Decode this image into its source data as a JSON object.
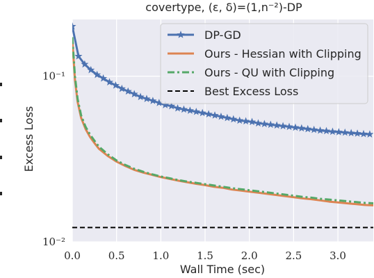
{
  "chart_data": {
    "type": "line",
    "title": "covertype, (ε, δ)=(1,n⁻²)-DP",
    "xlabel": "Wall Time (sec)",
    "ylabel": "Excess Loss",
    "x_scale": "linear",
    "y_scale": "log",
    "xlim": [
      0.0,
      3.4
    ],
    "ylim": [
      0.01,
      0.22
    ],
    "x_ticks": [
      0.0,
      0.5,
      1.0,
      1.5,
      2.0,
      2.5,
      3.0
    ],
    "x_tick_labels": [
      "0.0",
      "0.5",
      "1.0",
      "1.5",
      "2.0",
      "2.5",
      "3.0"
    ],
    "y_ticks": [
      0.1,
      0.01
    ],
    "y_tick_labels": [
      "10⁻¹",
      "10⁻²"
    ],
    "grid": true,
    "legend_position": "top-right",
    "series": [
      {
        "name": "DP-GD",
        "color": "#4c72b0",
        "style": "solid",
        "marker": "star",
        "x": [
          0.0,
          0.07,
          0.14,
          0.21,
          0.28,
          0.35,
          0.42,
          0.49,
          0.56,
          0.63,
          0.7,
          0.77,
          0.84,
          0.91,
          0.98,
          1.05,
          1.12,
          1.19,
          1.26,
          1.33,
          1.4,
          1.47,
          1.54,
          1.61,
          1.68,
          1.75,
          1.82,
          1.89,
          1.96,
          2.03,
          2.1,
          2.17,
          2.24,
          2.31,
          2.38,
          2.45,
          2.52,
          2.59,
          2.66,
          2.73,
          2.8,
          2.87,
          2.94,
          3.01,
          3.08,
          3.15,
          3.22,
          3.29,
          3.36
        ],
        "y": [
          0.2,
          0.132,
          0.118,
          0.109,
          0.102,
          0.097,
          0.092,
          0.088,
          0.084,
          0.081,
          0.078,
          0.075,
          0.073,
          0.071,
          0.069,
          0.067,
          0.066,
          0.064,
          0.063,
          0.062,
          0.061,
          0.06,
          0.059,
          0.058,
          0.057,
          0.056,
          0.055,
          0.054,
          0.0535,
          0.053,
          0.052,
          0.0515,
          0.051,
          0.0505,
          0.05,
          0.0495,
          0.049,
          0.0485,
          0.048,
          0.0475,
          0.047,
          0.0467,
          0.0463,
          0.046,
          0.0457,
          0.0454,
          0.0451,
          0.0448,
          0.0446
        ]
      },
      {
        "name": "Ours - Hessian with Clipping",
        "color": "#dd8452",
        "style": "solid",
        "marker": "none",
        "x": [
          0.0,
          0.03,
          0.06,
          0.1,
          0.15,
          0.2,
          0.25,
          0.3,
          0.4,
          0.5,
          0.6,
          0.7,
          0.8,
          0.9,
          1.0,
          1.1,
          1.2,
          1.3,
          1.4,
          1.5,
          1.6,
          1.7,
          1.8,
          1.9,
          2.0,
          2.1,
          2.2,
          2.3,
          2.4,
          2.5,
          2.6,
          2.7,
          2.8,
          2.9,
          3.0,
          3.1,
          3.2,
          3.3,
          3.4
        ],
        "y": [
          0.165,
          0.095,
          0.07,
          0.056,
          0.048,
          0.043,
          0.0395,
          0.0365,
          0.033,
          0.0305,
          0.0287,
          0.0272,
          0.0262,
          0.0254,
          0.0246,
          0.024,
          0.0234,
          0.0229,
          0.0224,
          0.022,
          0.0215,
          0.0212,
          0.0207,
          0.0204,
          0.0201,
          0.0198,
          0.0195,
          0.0192,
          0.0189,
          0.0186,
          0.0183,
          0.0181,
          0.0178,
          0.0175,
          0.0173,
          0.0171,
          0.0169,
          0.0167,
          0.0166
        ]
      },
      {
        "name": "Ours - QU with Clipping",
        "color": "#55a868",
        "style": "dashdot",
        "marker": "none",
        "x": [
          0.0,
          0.03,
          0.06,
          0.1,
          0.15,
          0.2,
          0.25,
          0.3,
          0.4,
          0.5,
          0.6,
          0.7,
          0.8,
          0.9,
          1.0,
          1.1,
          1.2,
          1.3,
          1.4,
          1.5,
          1.6,
          1.7,
          1.8,
          1.9,
          2.0,
          2.1,
          2.2,
          2.3,
          2.4,
          2.5,
          2.6,
          2.7,
          2.8,
          2.9,
          3.0,
          3.1,
          3.2,
          3.3,
          3.4
        ],
        "y": [
          0.172,
          0.1,
          0.073,
          0.058,
          0.0495,
          0.0445,
          0.0408,
          0.0376,
          0.0338,
          0.031,
          0.0291,
          0.0276,
          0.0265,
          0.0256,
          0.0248,
          0.0242,
          0.0236,
          0.0231,
          0.0227,
          0.0223,
          0.0219,
          0.0215,
          0.0211,
          0.0208,
          0.0205,
          0.0202,
          0.0199,
          0.0196,
          0.0193,
          0.019,
          0.0187,
          0.0185,
          0.0182,
          0.018,
          0.0178,
          0.0176,
          0.0174,
          0.0172,
          0.0171
        ]
      },
      {
        "name": "Best Excess Loss",
        "color": "#000000",
        "style": "dashed",
        "marker": "none",
        "x": [
          0.0,
          3.4
        ],
        "y": [
          0.0122,
          0.0122
        ]
      }
    ]
  }
}
